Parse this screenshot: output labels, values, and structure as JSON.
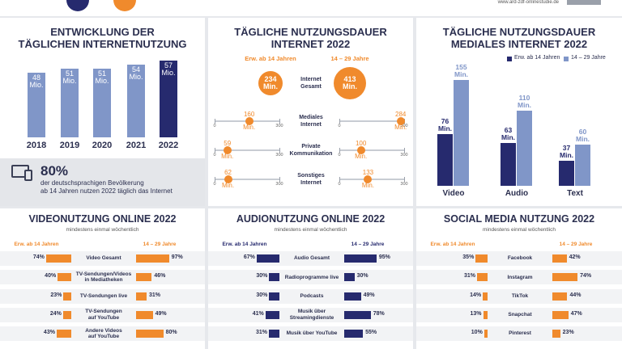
{
  "header": {
    "url": "www.ard-zdf-onlinestudie.de"
  },
  "chart_data": [
    {
      "type": "bar",
      "title": "ENTWICKLUNG DER\nTÄGLICHEN INTERNETNUTZUNG",
      "categories": [
        "2018",
        "2019",
        "2020",
        "2021",
        "2022"
      ],
      "values": [
        48,
        51,
        51,
        54,
        57
      ],
      "value_labels": [
        "48\nMio.",
        "51\nMio.",
        "51\nMio.",
        "54\nMio.",
        "57\nMio."
      ],
      "colors": [
        "#8096c8",
        "#8096c8",
        "#8096c8",
        "#8096c8",
        "#262a6e"
      ],
      "ylim": [
        0,
        60
      ],
      "note_title": "80%",
      "note_text": "der deutschsprachigen Bevölkerung\nab 14 Jahren nutzen 2022 täglich das Internet"
    },
    {
      "type": "dumbbell",
      "title": "TÄGLICHE NUTZUNGSDAUER\nINTERNET 2022",
      "categories": [
        "Internet\nGesamt",
        "Mediales\nInternet",
        "Private\nKommunikation",
        "Sonstiges\nInternet"
      ],
      "series": [
        {
          "name": "Erw. ab 14 Jahren",
          "color": "#f08a2c",
          "values": [
            234,
            160,
            59,
            62
          ],
          "value_labels": [
            "234\nMin.",
            "160\nMin.",
            "59\nMin.",
            "62\nMin."
          ]
        },
        {
          "name": "14 – 29 Jahre",
          "color": "#f08a2c",
          "values": [
            413,
            284,
            100,
            133
          ],
          "value_labels": [
            "413\nMin.",
            "284\nMin.",
            "100\nMin.",
            "133\nMin."
          ]
        }
      ],
      "xlim": [
        0,
        300
      ],
      "xticks": [
        0,
        300
      ]
    },
    {
      "type": "grouped_bar",
      "title": "TÄGLICHE NUTZUNGSDAUER\nMEDIALES INTERNET 2022",
      "categories": [
        "Video",
        "Audio",
        "Text"
      ],
      "series": [
        {
          "name": "Erw. ab 14 Jahren",
          "color": "#262a6e",
          "values": [
            76,
            63,
            37
          ],
          "value_labels": [
            "76\nMin.",
            "63\nMin.",
            "37\nMin."
          ]
        },
        {
          "name": "14 – 29 Jahre",
          "color": "#8096c8",
          "values": [
            155,
            110,
            60
          ],
          "value_labels": [
            "155\nMin.",
            "110\nMin.",
            "60\nMin."
          ]
        }
      ],
      "ylim": [
        0,
        160
      ]
    },
    {
      "type": "butterfly",
      "title": "VIDEONUTZUNG ONLINE 2022",
      "subtitle": "mindestens einmal wöchentlich",
      "categories": [
        "Video Gesamt",
        "TV-Sendungen/Videos\nin Mediatheken",
        "TV-Sendungen live",
        "TV-Sendungen\nauf YouTube",
        "Andere Videos\nauf YouTube"
      ],
      "series": [
        {
          "name": "Erw. ab 14 Jahren",
          "color": "#f08a2c",
          "values": [
            74,
            40,
            23,
            24,
            43
          ],
          "value_labels": [
            "74%",
            "40%",
            "23%",
            "24%",
            "43%"
          ]
        },
        {
          "name": "14 – 29 Jahre",
          "color": "#f08a2c",
          "values": [
            97,
            46,
            31,
            49,
            80
          ],
          "value_labels": [
            "97%",
            "46%",
            "31%",
            "49%",
            "80%"
          ]
        }
      ],
      "xlim": [
        0,
        100
      ]
    },
    {
      "type": "butterfly",
      "title": "AUDIONUTZUNG ONLINE 2022",
      "subtitle": "mindestens einmal wöchentlich",
      "categories": [
        "Audio Gesamt",
        "Radioprogramme live",
        "Podcasts",
        "Musik über\nStreamingdienste",
        "Musik über YouTube"
      ],
      "series": [
        {
          "name": "Erw. ab 14 Jahren",
          "color": "#262a6e",
          "values": [
            67,
            30,
            30,
            41,
            31
          ],
          "value_labels": [
            "67%",
            "30%",
            "30%",
            "41%",
            "31%"
          ]
        },
        {
          "name": "14 – 29 Jahre",
          "color": "#262a6e",
          "values": [
            95,
            30,
            49,
            78,
            55
          ],
          "value_labels": [
            "95%",
            "30%",
            "49%",
            "78%",
            "55%"
          ]
        }
      ],
      "xlim": [
        0,
        100
      ]
    },
    {
      "type": "butterfly",
      "title": "SOCIAL MEDIA NUTZUNG 2022",
      "subtitle": "mindestens einmal wöchentlich",
      "categories": [
        "Facebook",
        "Instagram",
        "TikTok",
        "Snapchat",
        "Pinterest"
      ],
      "series": [
        {
          "name": "Erw. ab 14 Jahren",
          "color": "#f08a2c",
          "values": [
            35,
            31,
            14,
            13,
            10
          ],
          "value_labels": [
            "35%",
            "31%",
            "14%",
            "13%",
            "10%"
          ]
        },
        {
          "name": "14 – 29 Jahre",
          "color": "#f08a2c",
          "values": [
            42,
            74,
            44,
            47,
            23
          ],
          "value_labels": [
            "42%",
            "74%",
            "44%",
            "47%",
            "23%"
          ]
        }
      ],
      "xlim": [
        0,
        100
      ]
    }
  ]
}
